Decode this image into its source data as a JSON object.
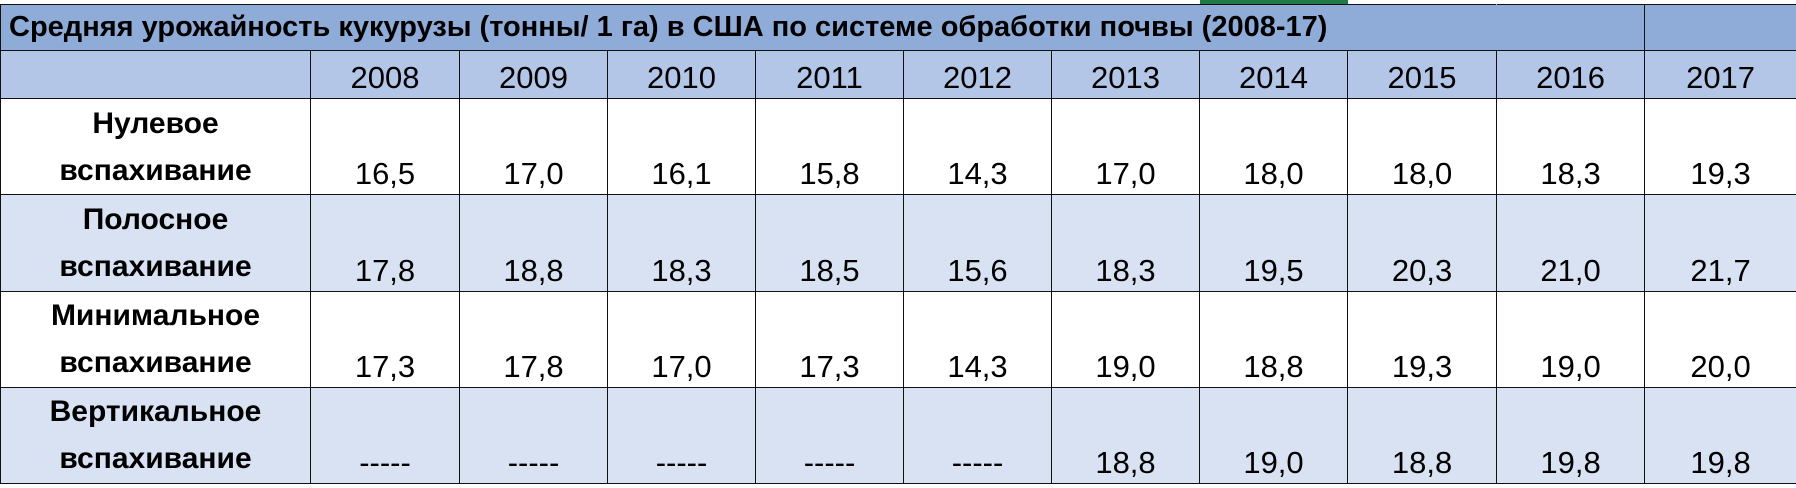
{
  "title": "Средняя урожайность кукурузы (тонны/ 1 га) в США по системе обработки почвы (2008-17)",
  "years": [
    "2008",
    "2009",
    "2010",
    "2011",
    "2012",
    "2013",
    "2014",
    "2015",
    "2016",
    "2017"
  ],
  "rows": [
    {
      "label_line1": "Нулевое",
      "label_line2": "вспахивание",
      "values": [
        "16,5",
        "17,0",
        "16,1",
        "15,8",
        "14,3",
        "17,0",
        "18,0",
        "18,0",
        "18,3",
        "19,3"
      ]
    },
    {
      "label_line1": "Полосное",
      "label_line2": "вспахивание",
      "values": [
        "17,8",
        "18,8",
        "18,3",
        "18,5",
        "15,6",
        "18,3",
        "19,5",
        "20,3",
        "21,0",
        "21,7"
      ]
    },
    {
      "label_line1": "Минимальное",
      "label_line2": "вспахивание",
      "values": [
        "17,3",
        "17,8",
        "17,0",
        "17,3",
        "14,3",
        "19,0",
        "18,8",
        "19,3",
        "19,0",
        "20,0"
      ]
    },
    {
      "label_line1": "Вертикальное",
      "label_line2": "вспахивание",
      "values": [
        "-----",
        "-----",
        "-----",
        "-----",
        "-----",
        "18,8",
        "19,0",
        "18,8",
        "19,8",
        "19,8"
      ]
    }
  ],
  "colors": {
    "title_fill": "#8fabd8",
    "header_fill": "#b4c6e7",
    "alt_row_fill": "#d9e2f3",
    "tab_accent": "#1f7a46"
  }
}
